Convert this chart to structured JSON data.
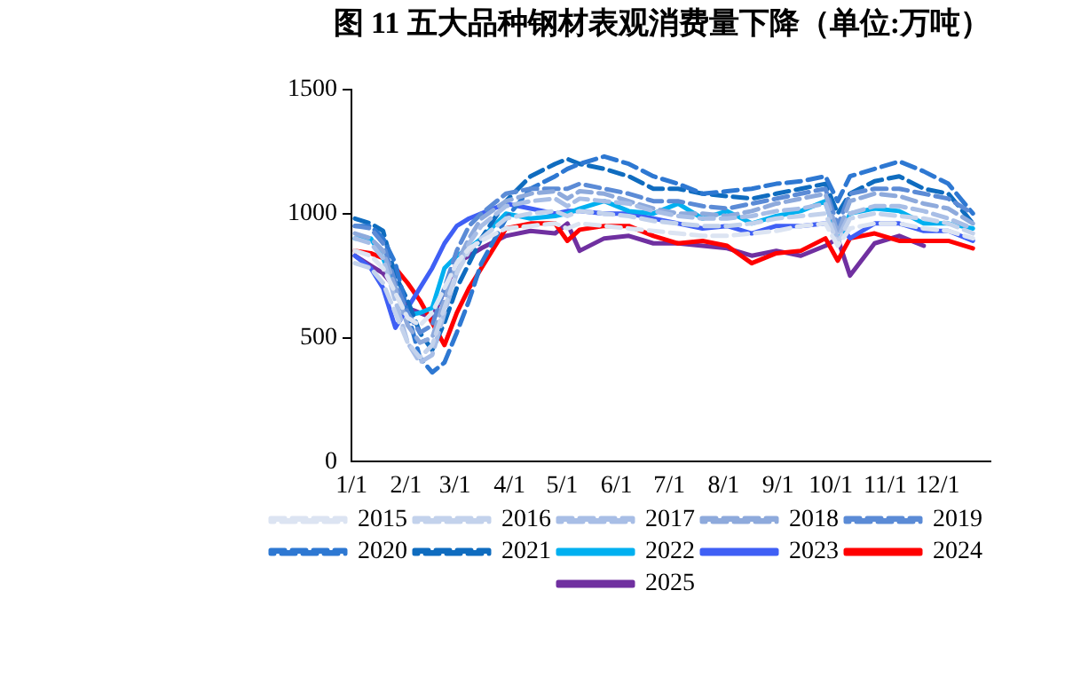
{
  "chart_data": {
    "type": "line",
    "title": "图 11 五大品种钢材表观消费量下降（单位:万吨）",
    "x": [
      "--01-03",
      "--01-12",
      "--01-19",
      "--01-26",
      "--02-02",
      "--02-09",
      "--02-16",
      "--02-23",
      "--03-02",
      "--03-09",
      "--03-16",
      "--03-30",
      "--04-13",
      "--04-27",
      "--05-04",
      "--05-11",
      "--05-25",
      "--06-08",
      "--06-22",
      "--07-06",
      "--07-20",
      "--08-03",
      "--08-17",
      "--08-31",
      "--09-14",
      "--09-28",
      "--10-05",
      "--10-12",
      "--10-26",
      "--11-09",
      "--11-23",
      "--12-07",
      "--12-21"
    ],
    "xlim": [
      "--01-01",
      "--12-31"
    ],
    "xticks": [
      {
        "value": "--01-01",
        "label": "1/1"
      },
      {
        "value": "--02-01",
        "label": "2/1"
      },
      {
        "value": "--03-01",
        "label": "3/1"
      },
      {
        "value": "--04-01",
        "label": "4/1"
      },
      {
        "value": "--05-01",
        "label": "5/1"
      },
      {
        "value": "--06-01",
        "label": "6/1"
      },
      {
        "value": "--07-01",
        "label": "7/1"
      },
      {
        "value": "--08-01",
        "label": "8/1"
      },
      {
        "value": "--09-01",
        "label": "9/1"
      },
      {
        "value": "--10-01",
        "label": "10/1"
      },
      {
        "value": "--11-01",
        "label": "11/1"
      },
      {
        "value": "--12-01",
        "label": "12/1"
      }
    ],
    "ylim": [
      0,
      1500
    ],
    "yticks": [
      0,
      500,
      1000,
      1500
    ],
    "grid": false,
    "legend": "bottom",
    "marker": "none",
    "series": [
      {
        "name": "2015",
        "color": "#dce4f2",
        "line_style": "dashed",
        "values": [
          850,
          830,
          780,
          680,
          580,
          550,
          600,
          700,
          800,
          860,
          890,
          940,
          950,
          960,
          940,
          960,
          950,
          940,
          930,
          920,
          910,
          910,
          920,
          930,
          950,
          960,
          870,
          940,
          960,
          960,
          940,
          930,
          900
        ]
      },
      {
        "name": "2016",
        "color": "#c3d2ec",
        "line_style": "dashed",
        "values": [
          800,
          780,
          720,
          600,
          480,
          420,
          470,
          620,
          760,
          850,
          900,
          980,
          1000,
          1010,
          990,
          1010,
          1000,
          990,
          970,
          960,
          950,
          950,
          960,
          980,
          990,
          1000,
          880,
          980,
          1000,
          990,
          980,
          960,
          920
        ]
      },
      {
        "name": "2017",
        "color": "#a8bee6",
        "line_style": "dashed",
        "values": [
          900,
          880,
          820,
          650,
          480,
          400,
          430,
          600,
          760,
          880,
          950,
          1030,
          1050,
          1060,
          1030,
          1060,
          1050,
          1040,
          1010,
          990,
          980,
          980,
          990,
          1010,
          1020,
          1040,
          900,
          1000,
          1030,
          1030,
          1010,
          980,
          940
        ]
      },
      {
        "name": "2018",
        "color": "#8eaadc",
        "line_style": "dashed",
        "values": [
          920,
          900,
          850,
          700,
          550,
          480,
          500,
          650,
          800,
          900,
          980,
          1050,
          1080,
          1090,
          1060,
          1090,
          1080,
          1050,
          1020,
          1000,
          1000,
          990,
          1010,
          1040,
          1060,
          1080,
          920,
          1050,
          1080,
          1070,
          1040,
          1020,
          960
        ]
      },
      {
        "name": "2019",
        "color": "#5b8bd6",
        "line_style": "dashed",
        "values": [
          950,
          940,
          880,
          720,
          600,
          520,
          550,
          700,
          850,
          950,
          1000,
          1080,
          1100,
          1100,
          1100,
          1120,
          1100,
          1080,
          1050,
          1050,
          1030,
          1020,
          1040,
          1060,
          1080,
          1100,
          950,
          1080,
          1100,
          1100,
          1080,
          1060,
          1000
        ]
      },
      {
        "name": "2020",
        "color": "#2e78d2",
        "line_style": "dashed",
        "values": [
          950,
          950,
          900,
          800,
          600,
          420,
          360,
          400,
          520,
          650,
          800,
          980,
          1100,
          1150,
          1180,
          1200,
          1230,
          1200,
          1150,
          1120,
          1080,
          1090,
          1100,
          1120,
          1130,
          1150,
          1050,
          1150,
          1180,
          1210,
          1170,
          1120,
          1000
        ]
      },
      {
        "name": "2021",
        "color": "#0f6cbf",
        "line_style": "dashed",
        "values": [
          980,
          960,
          930,
          750,
          650,
          520,
          450,
          560,
          700,
          800,
          900,
          1050,
          1150,
          1200,
          1220,
          1200,
          1180,
          1150,
          1100,
          1100,
          1080,
          1070,
          1060,
          1080,
          1100,
          1120,
          1000,
          1080,
          1130,
          1150,
          1100,
          1080,
          960
        ]
      },
      {
        "name": "2022",
        "color": "#00b0f0",
        "line_style": "solid",
        "values": [
          900,
          900,
          820,
          700,
          590,
          600,
          620,
          780,
          830,
          860,
          900,
          1000,
          980,
          990,
          1000,
          1020,
          1050,
          1010,
          1000,
          1040,
          980,
          1010,
          960,
          990,
          1010,
          1050,
          880,
          1000,
          1020,
          1010,
          960,
          960,
          940
        ]
      },
      {
        "name": "2023",
        "color": "#3f5ff5",
        "line_style": "solid",
        "values": [
          830,
          780,
          700,
          540,
          620,
          700,
          780,
          880,
          950,
          980,
          1000,
          1040,
          1020,
          1000,
          1010,
          1010,
          1000,
          1000,
          980,
          960,
          940,
          950,
          920,
          950,
          950,
          960,
          970,
          900,
          960,
          960,
          930,
          930,
          890
        ]
      },
      {
        "name": "2024",
        "color": "#ff0000",
        "line_style": "solid",
        "values": [
          850,
          840,
          820,
          780,
          720,
          650,
          560,
          470,
          600,
          700,
          780,
          940,
          960,
          960,
          890,
          935,
          950,
          950,
          910,
          880,
          890,
          870,
          800,
          840,
          850,
          900,
          810,
          900,
          920,
          890,
          890,
          890,
          860
        ]
      },
      {
        "name": "2025",
        "color": "#7030a0",
        "line_style": "solid",
        "values": [
          830,
          790,
          760,
          700,
          620,
          600,
          580,
          690,
          800,
          830,
          860,
          910,
          930,
          920,
          960,
          850,
          900,
          910,
          880,
          880,
          870,
          860,
          830,
          850,
          830,
          870,
          900,
          750,
          880,
          910,
          870,
          null,
          null
        ]
      }
    ]
  }
}
